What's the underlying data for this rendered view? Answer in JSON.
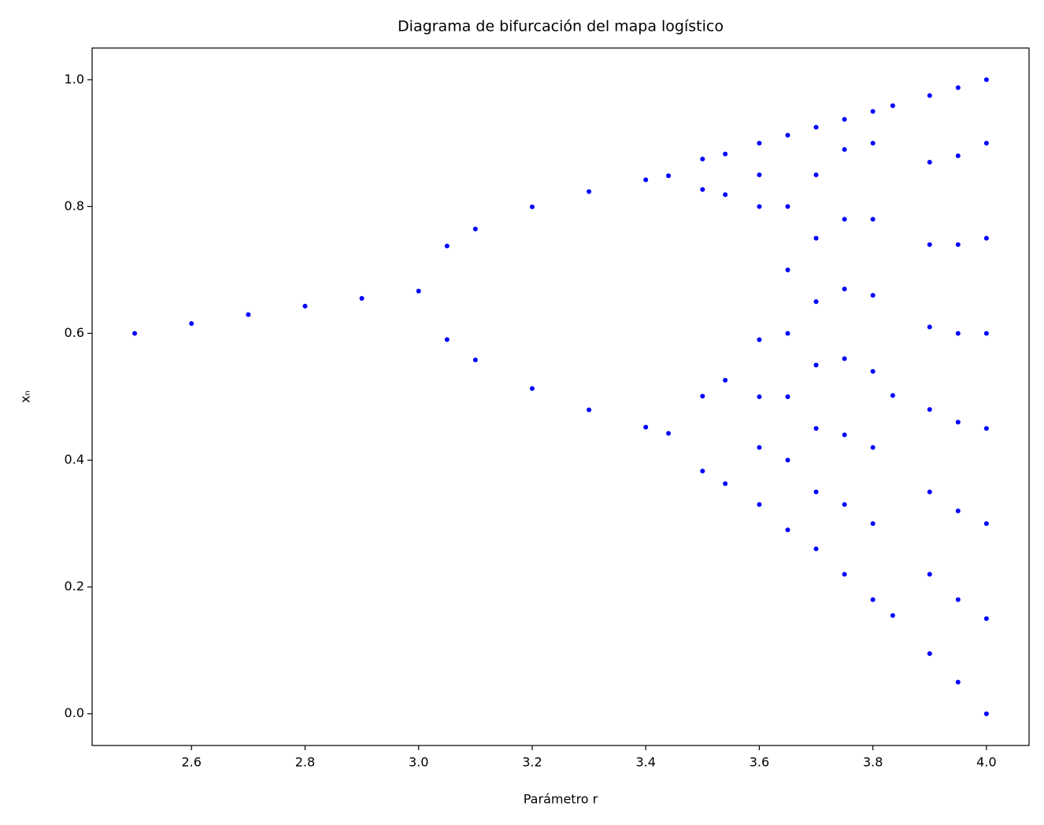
{
  "chart_data": {
    "type": "scatter",
    "title": "Diagrama de bifurcación del mapa logístico",
    "xlabel": "Parámetro r",
    "ylabel": "xₙ",
    "color": "#0000ff",
    "x": [
      2.5,
      2.6,
      2.7,
      2.8,
      2.9,
      3.0,
      3.05,
      3.05,
      3.1,
      3.1,
      3.2,
      3.2,
      3.3,
      3.3,
      3.4,
      3.4,
      3.44,
      3.44,
      3.5,
      3.5,
      3.5,
      3.5,
      3.54,
      3.54,
      3.54,
      3.54,
      3.6,
      3.6,
      3.6,
      3.6,
      3.6,
      3.6,
      3.6,
      3.65,
      3.65,
      3.65,
      3.65,
      3.65,
      3.65,
      3.65,
      3.7,
      3.7,
      3.7,
      3.7,
      3.7,
      3.7,
      3.7,
      3.7,
      3.75,
      3.75,
      3.75,
      3.75,
      3.75,
      3.75,
      3.75,
      3.75,
      3.8,
      3.8,
      3.8,
      3.8,
      3.8,
      3.8,
      3.8,
      3.8,
      3.835,
      3.835,
      3.835,
      3.9,
      3.9,
      3.9,
      3.9,
      3.9,
      3.9,
      3.9,
      3.9,
      3.95,
      3.95,
      3.95,
      3.95,
      3.95,
      3.95,
      3.95,
      3.95,
      4.0,
      4.0,
      4.0,
      4.0,
      4.0,
      4.0,
      4.0,
      4.0
    ],
    "values": [
      0.6,
      0.6154,
      0.6296,
      0.6429,
      0.6552,
      0.6667,
      0.7377,
      0.5902,
      0.7646,
      0.558,
      0.7995,
      0.513,
      0.8236,
      0.4794,
      0.8422,
      0.452,
      0.8485,
      0.4422,
      0.3828,
      0.8269,
      0.5009,
      0.875,
      0.363,
      0.8187,
      0.5261,
      0.8828,
      0.33,
      0.42,
      0.5,
      0.59,
      0.8,
      0.85,
      0.9,
      0.29,
      0.4,
      0.5,
      0.6,
      0.7,
      0.8,
      0.9125,
      0.26,
      0.35,
      0.45,
      0.55,
      0.65,
      0.75,
      0.85,
      0.925,
      0.22,
      0.33,
      0.44,
      0.56,
      0.67,
      0.78,
      0.89,
      0.9375,
      0.18,
      0.3,
      0.42,
      0.54,
      0.66,
      0.78,
      0.9,
      0.95,
      0.155,
      0.502,
      0.959,
      0.095,
      0.22,
      0.35,
      0.48,
      0.61,
      0.74,
      0.87,
      0.975,
      0.05,
      0.18,
      0.32,
      0.46,
      0.6,
      0.74,
      0.88,
      0.9875,
      0,
      0.15,
      0.3,
      0.45,
      0.6,
      0.75,
      0.9,
      1
    ],
    "xlim": [
      2.425,
      4.075
    ],
    "ylim": [
      -0.05,
      1.05
    ],
    "xticks": [
      2.6,
      2.8,
      {
        "value": 3,
        "label": "3.0"
      },
      3.2,
      3.4,
      3.6,
      3.8,
      {
        "value": 4,
        "label": "4.0"
      }
    ],
    "yticks": [
      {
        "value": 0,
        "label": "0.0"
      },
      0.2,
      0.4,
      0.6,
      0.8,
      {
        "value": 1,
        "label": "1.0"
      }
    ]
  }
}
